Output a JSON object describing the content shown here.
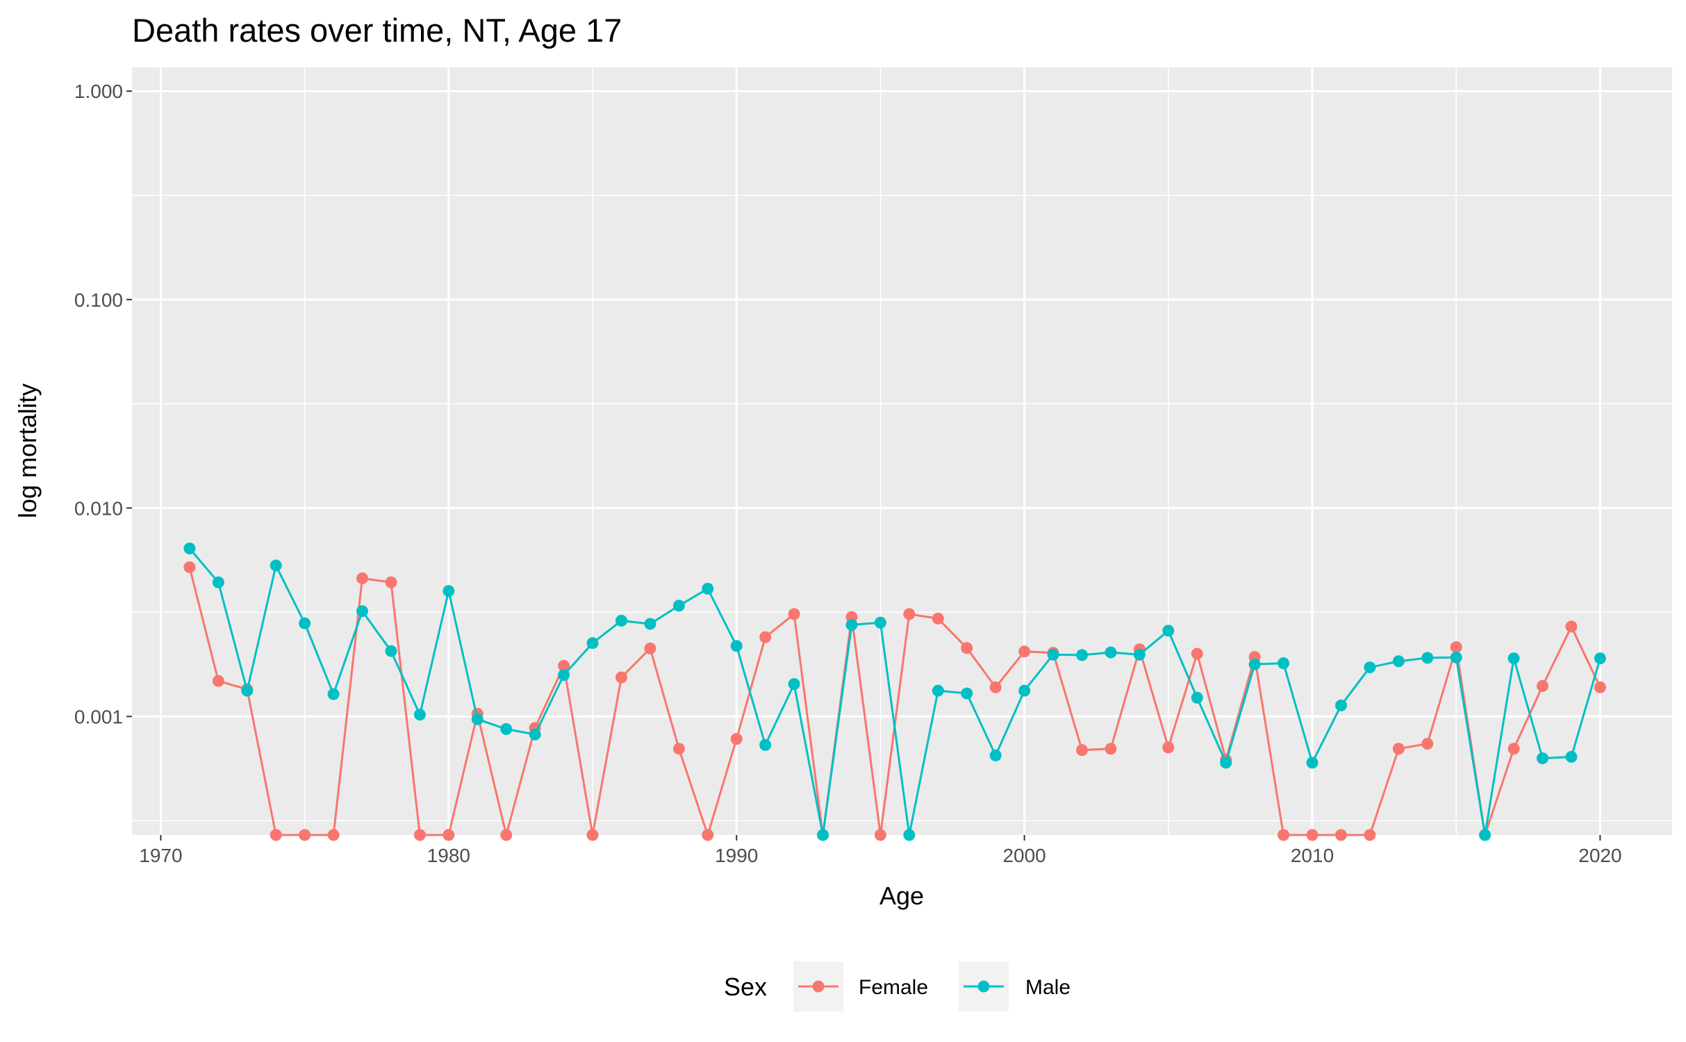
{
  "chart_data": {
    "type": "line",
    "title": "Death rates over time, NT, Age 17",
    "xlabel": "Age",
    "ylabel": "log mortality",
    "y_scale": "log10",
    "xlim": [
      1969,
      2022.5
    ],
    "ylim": [
      0.00027,
      1.3
    ],
    "x_ticks": [
      1970,
      1980,
      1990,
      2000,
      2010,
      2020
    ],
    "x_tick_labels": [
      "1970",
      "1980",
      "1990",
      "2000",
      "2010",
      "2020"
    ],
    "y_ticks": [
      0.001,
      0.01,
      0.1,
      1
    ],
    "y_tick_labels": [
      "0.001",
      "0.010",
      "0.100",
      "1.000"
    ],
    "grid": true,
    "legend_position": "bottom",
    "legend_title": "Sex",
    "x": [
      1971,
      1972,
      1973,
      1974,
      1975,
      1976,
      1977,
      1978,
      1979,
      1980,
      1981,
      1982,
      1983,
      1984,
      1985,
      1986,
      1987,
      1988,
      1989,
      1990,
      1991,
      1992,
      1993,
      1994,
      1995,
      1996,
      1997,
      1998,
      1999,
      2000,
      2001,
      2002,
      2003,
      2004,
      2005,
      2006,
      2007,
      2008,
      2009,
      2010,
      2011,
      2012,
      2013,
      2014,
      2015,
      2016,
      2017,
      2018,
      2019,
      2020
    ],
    "series": [
      {
        "name": "Female",
        "color": "#F8766D",
        "values": [
          0.0052,
          0.00148,
          0.00135,
          0.00027,
          0.00027,
          0.00027,
          0.0046,
          0.0044,
          0.00027,
          0.00027,
          0.00103,
          0.00027,
          0.00088,
          0.00175,
          0.00027,
          0.00154,
          0.00212,
          0.0007,
          0.00027,
          0.00078,
          0.0024,
          0.0031,
          0.00027,
          0.003,
          0.00027,
          0.0031,
          0.00295,
          0.00213,
          0.00138,
          0.00205,
          0.00202,
          0.00069,
          0.0007,
          0.0021,
          0.00071,
          0.002,
          0.00062,
          0.00193,
          0.00027,
          0.00027,
          0.00027,
          0.00027,
          0.0007,
          0.00074,
          0.00215,
          0.00027,
          0.0007,
          0.0014,
          0.0027,
          0.00138
        ]
      },
      {
        "name": "Male",
        "color": "#00BFC4",
        "values": [
          0.0064,
          0.0044,
          0.00133,
          0.0053,
          0.0028,
          0.00128,
          0.0032,
          0.00206,
          0.00102,
          0.004,
          0.00097,
          0.00087,
          0.00082,
          0.00158,
          0.00225,
          0.00288,
          0.00278,
          0.0034,
          0.0041,
          0.00218,
          0.00073,
          0.00143,
          0.00027,
          0.00275,
          0.00282,
          0.00027,
          0.00133,
          0.00129,
          0.00065,
          0.00133,
          0.00198,
          0.00197,
          0.00203,
          0.00198,
          0.00258,
          0.00123,
          0.0006,
          0.00178,
          0.0018,
          0.0006,
          0.00113,
          0.00172,
          0.00184,
          0.00191,
          0.00192,
          0.00027,
          0.0019,
          0.00063,
          0.00064,
          0.0019
        ]
      }
    ]
  }
}
